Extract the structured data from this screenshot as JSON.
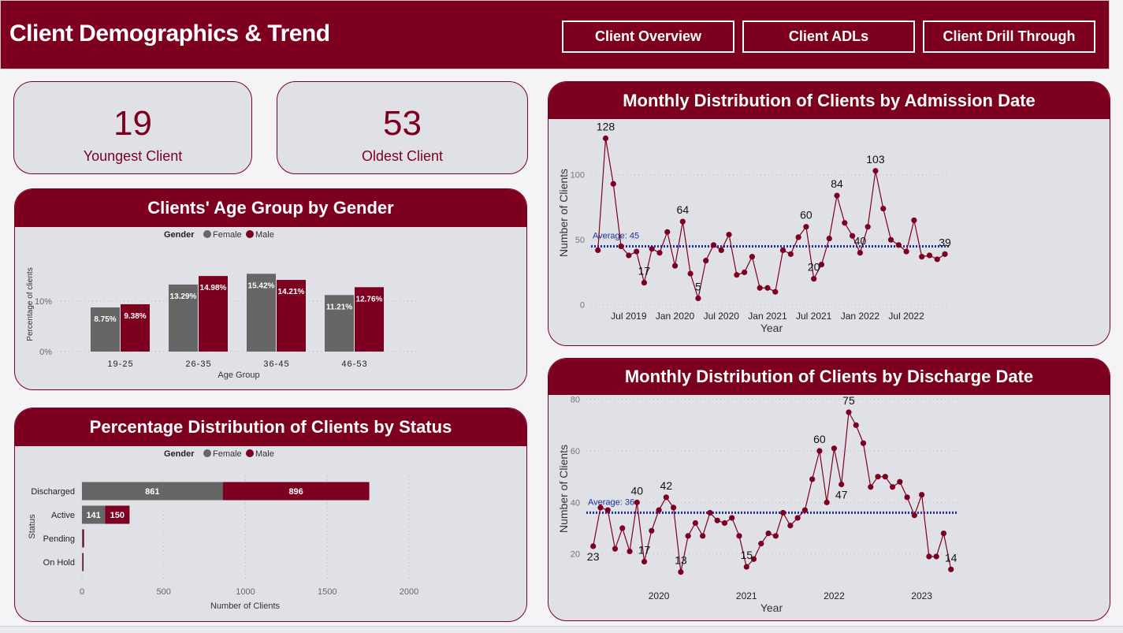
{
  "header": {
    "title": "Client Demographics & Trend",
    "nav": [
      "Client Overview",
      "Client ADLs",
      "Client Drill Through"
    ]
  },
  "colors": {
    "brand": "#7d0020",
    "female": "#666666",
    "male": "#7d0020",
    "average": "#1a2fa0",
    "card_bg": "#dfe1e7"
  },
  "kpis": [
    {
      "value": "19",
      "label": "Youngest Client"
    },
    {
      "value": "53",
      "label": "Oldest Client"
    }
  ],
  "chart_data": [
    {
      "id": "age",
      "type": "bar",
      "title": "Clients' Age Group by Gender",
      "legend_title": "Gender",
      "legend_position": "top",
      "categories": [
        "19-25",
        "26-35",
        "36-45",
        "46-53"
      ],
      "series": [
        {
          "name": "Female",
          "values": [
            8.75,
            13.29,
            15.42,
            11.21
          ],
          "labels": [
            "8.75%",
            "13.29%",
            "15.42%",
            "11.21%"
          ]
        },
        {
          "name": "Male",
          "values": [
            9.38,
            14.98,
            14.21,
            12.76
          ],
          "labels": [
            "9.38%",
            "14.98%",
            "14.21%",
            "12.76%"
          ]
        }
      ],
      "xlabel": "Age Group",
      "ylabel": "Percentage of clients",
      "yticks": [
        "0%",
        "10%"
      ],
      "grid": true
    },
    {
      "id": "status",
      "type": "bar",
      "orientation": "horizontal-stacked",
      "title": "Percentage Distribution of Clients by Status",
      "legend_title": "Gender",
      "legend_position": "top",
      "categories": [
        "Discharged",
        "Active",
        "Pending",
        "On Hold"
      ],
      "series": [
        {
          "name": "Female",
          "values": [
            861,
            141,
            2,
            1
          ],
          "labels": [
            "861",
            "141",
            "",
            ""
          ]
        },
        {
          "name": "Male",
          "values": [
            896,
            150,
            8,
            5
          ],
          "labels": [
            "896",
            "150",
            "",
            ""
          ]
        }
      ],
      "xlabel": "Number of Clients",
      "ylabel": "Status",
      "xlim": [
        0,
        2000
      ],
      "xticks": [
        "0",
        "500",
        "1000",
        "1500",
        "2000"
      ],
      "grid": true
    },
    {
      "id": "admission",
      "type": "line",
      "title": "Monthly Distribution of Clients by Admission Date",
      "xlabel": "Year",
      "ylabel": "Number of Clients",
      "x_start": "Mar 2019",
      "x_end": "Dec 2022",
      "values": [
        42,
        128,
        93,
        45,
        38,
        41,
        17,
        43,
        40,
        56,
        30,
        64,
        24,
        5,
        34,
        46,
        42,
        54,
        23,
        25,
        37,
        13,
        13,
        10,
        42,
        39,
        52,
        60,
        20,
        31,
        51,
        84,
        63,
        53,
        40,
        60,
        103,
        74,
        50,
        46,
        41,
        65,
        37,
        38,
        35,
        39
      ],
      "data_labels": {
        "1": "128",
        "6": "17",
        "11": "64",
        "13": "5",
        "27": "60",
        "28": "20",
        "31": "84",
        "34": "40",
        "36": "103",
        "45": "39"
      },
      "average": 45,
      "average_label": "Average: 45",
      "ylim": [
        0,
        135
      ],
      "yticks": [
        "0",
        "50",
        "100"
      ],
      "xticks": [
        {
          "index": 4,
          "label": "Jul 2019"
        },
        {
          "index": 10,
          "label": "Jan 2020"
        },
        {
          "index": 16,
          "label": "Jul 2020"
        },
        {
          "index": 22,
          "label": "Jan 2021"
        },
        {
          "index": 28,
          "label": "Jul 2021"
        },
        {
          "index": 34,
          "label": "Jan 2022"
        },
        {
          "index": 40,
          "label": "Jul 2022"
        }
      ],
      "grid": true
    },
    {
      "id": "discharge",
      "type": "line",
      "title": "Monthly Distribution of Clients by Discharge Date",
      "xlabel": "Year",
      "ylabel": "Number of Clients",
      "x_start": "Apr 2019",
      "x_end": "May 2023",
      "values": [
        23,
        38,
        37,
        22,
        30,
        21,
        40,
        17,
        29,
        37,
        42,
        38,
        13,
        27,
        32,
        27,
        36,
        33,
        32,
        34,
        27,
        15,
        18,
        24,
        28,
        27,
        36,
        31,
        34,
        37,
        49,
        60,
        40,
        61,
        47,
        75,
        70,
        63,
        46,
        50,
        50,
        46,
        48,
        42,
        35,
        43,
        19,
        19,
        28,
        14
      ],
      "data_labels": {
        "0": "23",
        "6": "40",
        "7": "17",
        "10": "42",
        "12": "13",
        "21": "15",
        "31": "60",
        "34": "47",
        "35": "75",
        "49": "14"
      },
      "average": 36,
      "average_label": "Average: 36",
      "ylim": [
        10,
        80
      ],
      "yticks": [
        "20",
        "40",
        "60",
        "80"
      ],
      "xticks": [
        {
          "index": 9,
          "label": "2020"
        },
        {
          "index": 21,
          "label": "2021"
        },
        {
          "index": 33,
          "label": "2022"
        },
        {
          "index": 45,
          "label": "2023"
        }
      ],
      "grid": true
    }
  ]
}
